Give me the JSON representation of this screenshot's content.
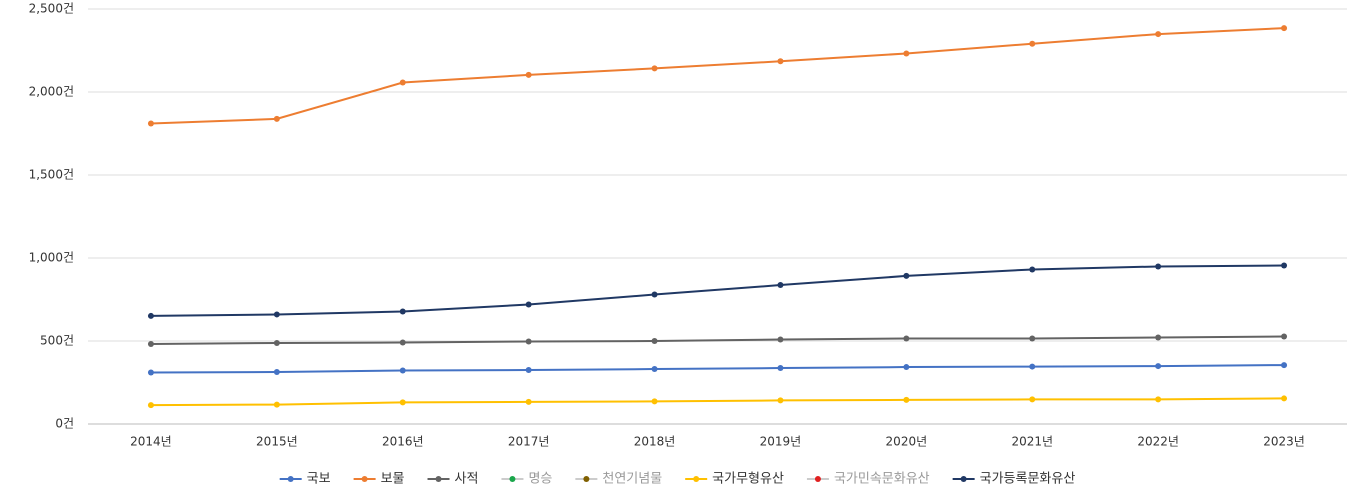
{
  "chart_data": {
    "type": "line",
    "categories": [
      "2014년",
      "2015년",
      "2016년",
      "2017년",
      "2018년",
      "2019년",
      "2020년",
      "2021년",
      "2022년",
      "2023년"
    ],
    "ylim": [
      0,
      2500
    ],
    "yticks": [
      {
        "value": 0,
        "label": "0건"
      },
      {
        "value": 500,
        "label": "500건"
      },
      {
        "value": 1000,
        "label": "1,000건"
      },
      {
        "value": 1500,
        "label": "1,500건"
      },
      {
        "value": 2000,
        "label": "2,000건"
      },
      {
        "value": 2500,
        "label": "2,500건"
      }
    ],
    "grid": true,
    "legend": "bottom",
    "series": [
      {
        "name": "국보",
        "color": "#4472c4",
        "values": [
          310,
          313,
          322,
          325,
          331,
          337,
          343,
          346,
          349,
          355
        ]
      },
      {
        "name": "보물",
        "color": "#ed7d31",
        "values": [
          1810,
          1838,
          2057,
          2103,
          2142,
          2185,
          2232,
          2291,
          2349,
          2385
        ]
      },
      {
        "name": "사적",
        "color": "#636363",
        "values": [
          482,
          488,
          491,
          497,
          500,
          509,
          515,
          515,
          521,
          527
        ]
      },
      {
        "name": "명승",
        "color": "#1aa64b",
        "hidden": true,
        "values": [
          null,
          null,
          null,
          null,
          null,
          null,
          null,
          null,
          null,
          null
        ]
      },
      {
        "name": "천연기념물",
        "color": "#806000",
        "hidden": true,
        "values": [
          null,
          null,
          null,
          null,
          null,
          null,
          null,
          null,
          null,
          null
        ]
      },
      {
        "name": "국가무형유산",
        "color": "#ffc000",
        "values": [
          114,
          117,
          130,
          133,
          136,
          142,
          145,
          148,
          148,
          154
        ]
      },
      {
        "name": "국가민속문화유산",
        "color": "#e02020",
        "hidden": true,
        "values": [
          null,
          null,
          null,
          null,
          null,
          null,
          null,
          null,
          null,
          null
        ]
      },
      {
        "name": "국가등록문화유산",
        "color": "#203864",
        "values": [
          651,
          660,
          678,
          720,
          780,
          837,
          892,
          931,
          949,
          955
        ]
      }
    ]
  }
}
